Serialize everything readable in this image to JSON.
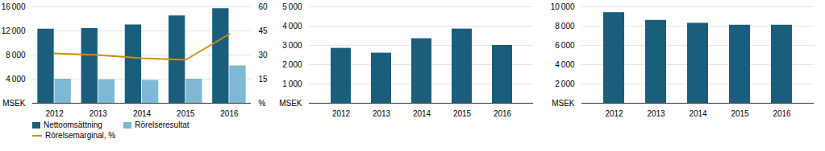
{
  "chart_data": [
    {
      "type": "bar",
      "categories": [
        "2012",
        "2013",
        "2014",
        "2015",
        "2016"
      ],
      "series": [
        {
          "name": "Nettoomsättning",
          "color": "#1b5e7b",
          "values": [
            12300,
            12400,
            13000,
            14500,
            15700
          ]
        },
        {
          "name": "Rörelseresultat",
          "color": "#7eb8d4",
          "values": [
            4000,
            3900,
            3800,
            4000,
            6200
          ]
        },
        {
          "name": "Rörelsemarginal, %",
          "color": "#c8920a",
          "type": "line",
          "axis": "y2",
          "values": [
            31,
            30,
            28,
            27,
            43
          ]
        }
      ],
      "ylim": [
        0,
        16000
      ],
      "yticks": [
        {
          "value": 0,
          "label": "MSEK"
        },
        {
          "value": 4000,
          "label": "4 000"
        },
        {
          "value": 8000,
          "label": "8 000"
        },
        {
          "value": 12000,
          "label": "12 000"
        },
        {
          "value": 16000,
          "label": "16 000"
        }
      ],
      "y2lim": [
        0,
        60
      ],
      "y2ticks": [
        {
          "value": 0,
          "label": "%"
        },
        15,
        30,
        45,
        60
      ],
      "grid": true,
      "legend": "bottom"
    },
    {
      "type": "bar",
      "categories": [
        "2012",
        "2013",
        "2014",
        "2015",
        "2016"
      ],
      "values": [
        2850,
        2600,
        3350,
        3850,
        3000
      ],
      "color": "#1b5e7b",
      "ylim": [
        0,
        5000
      ],
      "yticks": [
        {
          "value": 0,
          "label": "MSEK"
        },
        {
          "value": 1000,
          "label": "1 000"
        },
        {
          "value": 2000,
          "label": "2 000"
        },
        {
          "value": 3000,
          "label": "3 000"
        },
        {
          "value": 4000,
          "label": "4 000"
        },
        {
          "value": 5000,
          "label": "5 000"
        }
      ],
      "grid": true
    },
    {
      "type": "bar",
      "categories": [
        "2012",
        "2013",
        "2014",
        "2015",
        "2016"
      ],
      "values": [
        9400,
        8600,
        8300,
        8100,
        8100
      ],
      "color": "#1b5e7b",
      "ylim": [
        0,
        10000
      ],
      "yticks": [
        {
          "value": 0,
          "label": "MSEK"
        },
        {
          "value": 2000,
          "label": "2 000"
        },
        {
          "value": 4000,
          "label": "4 000"
        },
        {
          "value": 6000,
          "label": "6 000"
        },
        {
          "value": 8000,
          "label": "8 000"
        },
        {
          "value": 10000,
          "label": "10 000"
        }
      ],
      "grid": true
    }
  ]
}
